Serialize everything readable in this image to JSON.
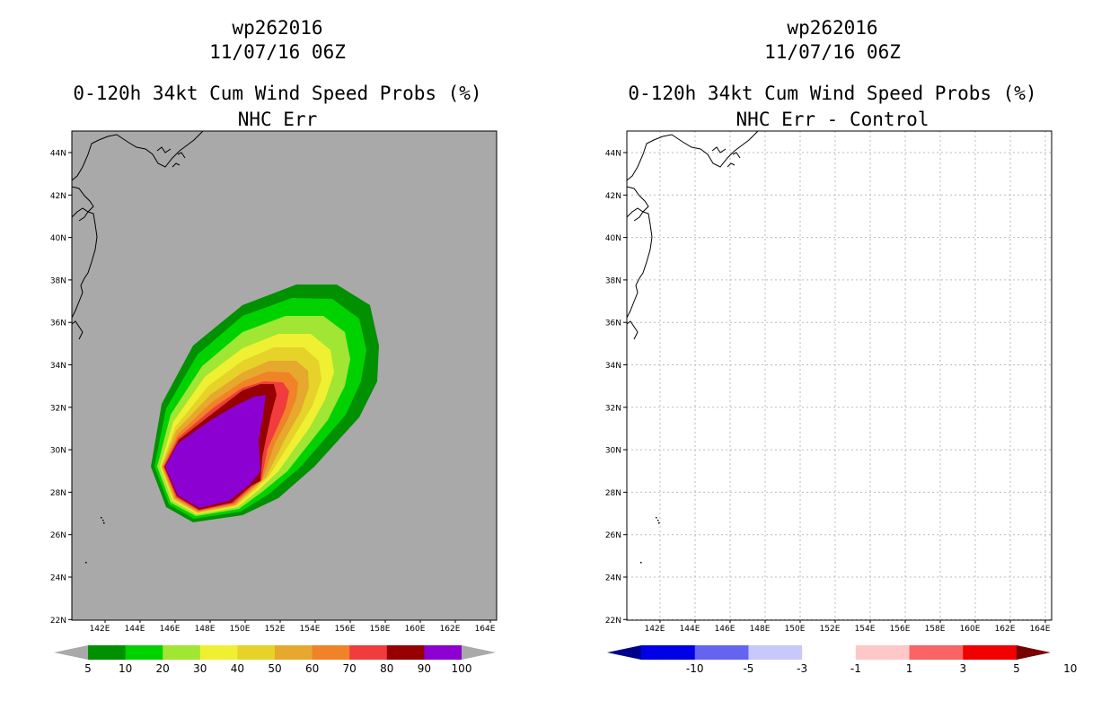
{
  "left_panel": {
    "storm_id": "wp262016",
    "datetime": "11/07/16 06Z",
    "product": "0-120h 34kt Cum Wind Speed Probs (%)",
    "subtitle": "NHC Err",
    "colorbar": {
      "labels": [
        "5",
        "10",
        "20",
        "30",
        "40",
        "50",
        "60",
        "70",
        "80",
        "90",
        "100"
      ],
      "colors": [
        "#009000",
        "#00d200",
        "#a0e632",
        "#f0f032",
        "#e6d228",
        "#e6a82d",
        "#f08228",
        "#f03c3c",
        "#960000",
        "#8c00d2"
      ],
      "below_color": "#a9a9a9",
      "above_color": "#a9a9a9"
    }
  },
  "right_panel": {
    "storm_id": "wp262016",
    "datetime": "11/07/16 06Z",
    "product": "0-120h 34kt Cum Wind Speed Probs (%)",
    "subtitle": "NHC Err - Control",
    "colorbar": {
      "labels": [
        "-10",
        "-5",
        "-3",
        "-1",
        "1",
        "3",
        "5",
        "10"
      ],
      "colors": [
        "#0000e6",
        "#6464f0",
        "#c8c8fa",
        "#ffffff",
        "#ffc8c8",
        "#fa6464",
        "#f00000"
      ],
      "below_color": "#00008c",
      "above_color": "#780000"
    }
  },
  "map": {
    "lat_labels": [
      "44N",
      "42N",
      "40N",
      "38N",
      "36N",
      "34N",
      "32N",
      "30N",
      "28N",
      "26N",
      "24N",
      "22N"
    ],
    "lon_labels": [
      "142E",
      "144E",
      "146E",
      "148E",
      "150E",
      "152E",
      "154E",
      "156E",
      "158E",
      "160E",
      "162E",
      "164E"
    ],
    "background_color": "#a9a9a9",
    "grid_color": "#bbbbbb"
  }
}
